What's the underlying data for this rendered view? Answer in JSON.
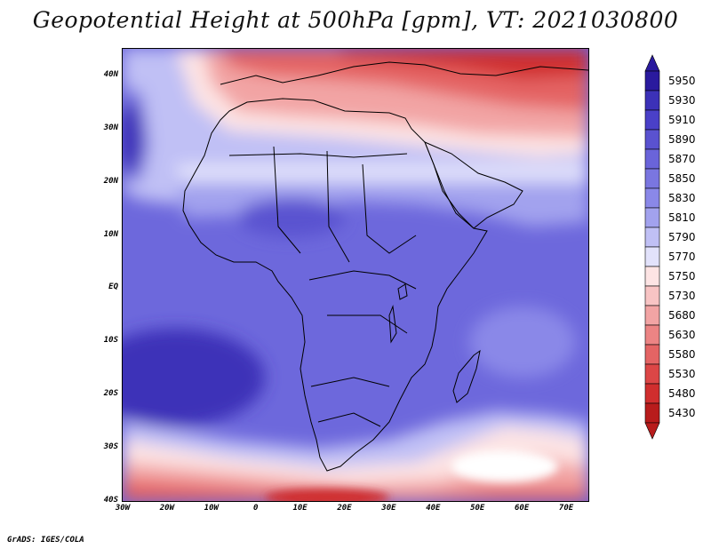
{
  "title": "Geopotential Height at 500hPa [gpm], VT: 2021030800",
  "footer": "GrADS: IGES/COLA",
  "lat_ticks": [
    {
      "value": 40,
      "label": "40N"
    },
    {
      "value": 30,
      "label": "30N"
    },
    {
      "value": 20,
      "label": "20N"
    },
    {
      "value": 10,
      "label": "10N"
    },
    {
      "value": 0,
      "label": "EQ"
    },
    {
      "value": -10,
      "label": "10S"
    },
    {
      "value": -20,
      "label": "20S"
    },
    {
      "value": -30,
      "label": "30S"
    },
    {
      "value": -40,
      "label": "40S"
    }
  ],
  "lon_ticks": [
    {
      "value": -30,
      "label": "30W"
    },
    {
      "value": -20,
      "label": "20W"
    },
    {
      "value": -10,
      "label": "10W"
    },
    {
      "value": 0,
      "label": "0"
    },
    {
      "value": 10,
      "label": "10E"
    },
    {
      "value": 20,
      "label": "20E"
    },
    {
      "value": 30,
      "label": "30E"
    },
    {
      "value": 40,
      "label": "40E"
    },
    {
      "value": 50,
      "label": "50E"
    },
    {
      "value": 60,
      "label": "60E"
    },
    {
      "value": 70,
      "label": "70E"
    }
  ],
  "legend": {
    "levels": [
      "5950",
      "5930",
      "5910",
      "5890",
      "5870",
      "5850",
      "5830",
      "5810",
      "5790",
      "5770",
      "5750",
      "5730",
      "5680",
      "5630",
      "5580",
      "5530",
      "5480",
      "5430"
    ],
    "colors": [
      "#2a1a9e",
      "#3c31b8",
      "#4a40c8",
      "#5a52d0",
      "#6a64da",
      "#7a76e0",
      "#8a88e8",
      "#a2a2ee",
      "#c0c0f5",
      "#e2e2fb",
      "#fde4e4",
      "#f8c4c4",
      "#f2a4a4",
      "#ec8484",
      "#e46464",
      "#dc4646",
      "#d02e2e",
      "#b81c1c"
    ]
  },
  "map": {
    "lon_range": [
      -30,
      75
    ],
    "lat_range": [
      -40,
      45
    ]
  }
}
